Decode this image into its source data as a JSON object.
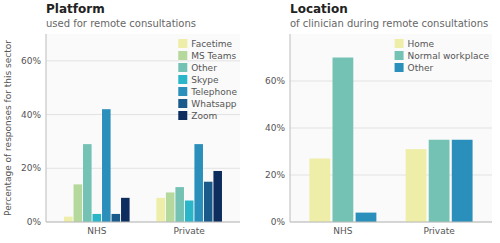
{
  "chart_data": [
    {
      "type": "bar",
      "title": "Platform",
      "subtitle": "used for remote consultations",
      "categories": [
        "NHS",
        "Private"
      ],
      "series": [
        {
          "name": "Facetime",
          "values": [
            2,
            9
          ],
          "color": "#eeeea8"
        },
        {
          "name": "MS Teams",
          "values": [
            14,
            11
          ],
          "color": "#b5d99c"
        },
        {
          "name": "Other",
          "values": [
            29,
            13
          ],
          "color": "#74c2b4"
        },
        {
          "name": "Skype",
          "values": [
            3,
            8
          ],
          "color": "#2ab5c8"
        },
        {
          "name": "Telephone",
          "values": [
            42,
            29
          ],
          "color": "#2a8fba"
        },
        {
          "name": "Whatsapp",
          "values": [
            3,
            15
          ],
          "color": "#1a5a8a"
        },
        {
          "name": "Zoom",
          "values": [
            9,
            19
          ],
          "color": "#0d2d5e"
        }
      ],
      "ylim": [
        0,
        70
      ],
      "yticks": [
        {
          "value": 0,
          "label": "0%"
        },
        {
          "value": 20,
          "label": "20%"
        },
        {
          "value": 40,
          "label": "40%"
        },
        {
          "value": 60,
          "label": "60%"
        }
      ],
      "ylabel": "Percentage of responses for this sector",
      "grid": true,
      "legend": "upper right"
    },
    {
      "type": "bar",
      "title": "Location",
      "subtitle": "of clinician during remote consultations",
      "categories": [
        "NHS",
        "Private"
      ],
      "series": [
        {
          "name": "Home",
          "values": [
            27,
            31
          ],
          "color": "#eeeea8"
        },
        {
          "name": "Normal workplace",
          "values": [
            70,
            35
          ],
          "color": "#74c2b4"
        },
        {
          "name": "Other",
          "values": [
            4,
            35
          ],
          "color": "#2a8fba"
        }
      ],
      "ylim": [
        0,
        80
      ],
      "yticks": [
        {
          "value": 0,
          "label": "0%"
        },
        {
          "value": 20,
          "label": "20%"
        },
        {
          "value": 40,
          "label": "40%"
        },
        {
          "value": 60,
          "label": "60%"
        }
      ],
      "grid": true,
      "legend": "upper right"
    }
  ]
}
